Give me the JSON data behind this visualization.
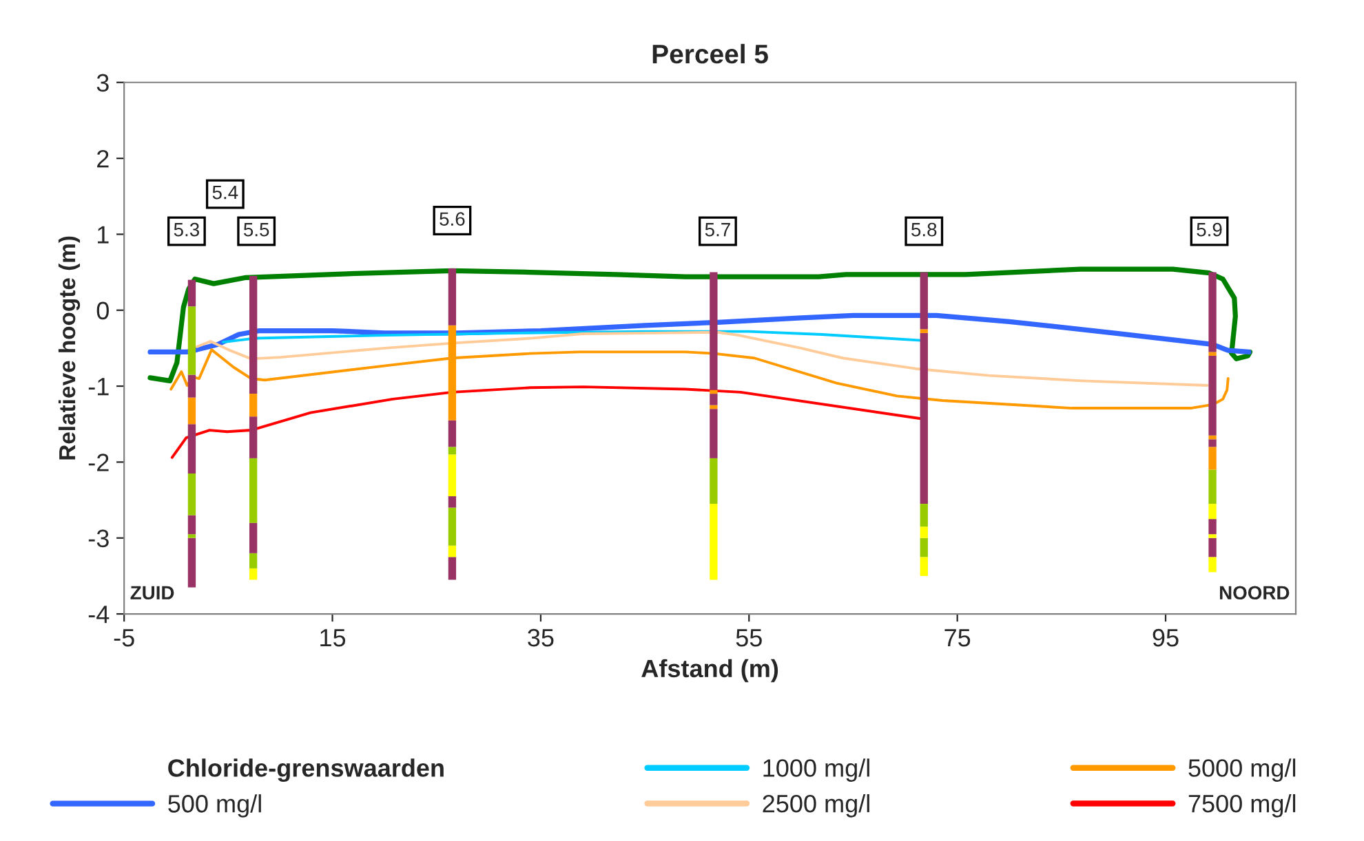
{
  "chart_data": {
    "type": "line",
    "title": "Perceel 5",
    "xlabel": "Afstand (m)",
    "ylabel": "Relatieve hoogte (m)",
    "legend_title": "Chloride-grenswaarden",
    "xlim": [
      -5,
      107.5
    ],
    "xticks": [
      -5,
      15,
      35,
      55,
      75,
      95
    ],
    "ylim": [
      -4,
      3
    ],
    "yticks": [
      -4,
      -3,
      -2,
      -1,
      0,
      1,
      2,
      3
    ],
    "grid": false,
    "legend": "bottom",
    "marker": "none",
    "line_style": "solid",
    "series": [
      {
        "color": "#008000",
        "x": [
          -2.5,
          -0.6,
          0.07,
          0.7,
          1.2,
          1.8,
          3.6,
          6.7,
          16.4,
          26.5,
          34,
          42.2,
          48.9,
          61.7,
          64.3,
          71.6,
          75.8,
          86.8,
          95.7,
          99.2,
          100.5,
          101.6,
          101.7,
          101.4,
          101.3,
          101.8,
          102.9,
          103.1
        ],
        "values": [
          -0.89,
          -0.93,
          -0.69,
          0.04,
          0.28,
          0.41,
          0.35,
          0.43,
          0.48,
          0.52,
          0.5,
          0.47,
          0.44,
          0.44,
          0.47,
          0.47,
          0.47,
          0.54,
          0.54,
          0.49,
          0.41,
          0.16,
          -0.08,
          -0.48,
          -0.56,
          -0.64,
          -0.6,
          -0.55
        ]
      },
      {
        "name": "500 mg/l",
        "color": "#3366ff",
        "x": [
          -2.5,
          1,
          2,
          4,
          6,
          8,
          15,
          20,
          27,
          35,
          45,
          52,
          60,
          65,
          73,
          80,
          90,
          99.5,
          101,
          103
        ],
        "values": [
          -0.55,
          -0.55,
          -0.52,
          -0.45,
          -0.32,
          -0.27,
          -0.27,
          -0.3,
          -0.3,
          -0.27,
          -0.2,
          -0.16,
          -0.1,
          -0.07,
          -0.07,
          -0.15,
          -0.3,
          -0.45,
          -0.53,
          -0.55
        ]
      },
      {
        "name": "1000 mg/l",
        "color": "#00ccff",
        "x": [
          4.5,
          7.5,
          20,
          33,
          45,
          55,
          62,
          67,
          71.8
        ],
        "values": [
          -0.42,
          -0.37,
          -0.33,
          -0.3,
          -0.28,
          -0.28,
          -0.32,
          -0.36,
          -0.4
        ]
      },
      {
        "name": "2500 mg/l",
        "color": "#ffcc99",
        "x": [
          2,
          3.3,
          5,
          7.2,
          10,
          20,
          27,
          34,
          39,
          46,
          52,
          54,
          60,
          64,
          71,
          78,
          87,
          99
        ],
        "values": [
          -0.48,
          -0.41,
          -0.52,
          -0.64,
          -0.62,
          -0.5,
          -0.43,
          -0.37,
          -0.31,
          -0.3,
          -0.29,
          -0.33,
          -0.5,
          -0.63,
          -0.77,
          -0.86,
          -0.93,
          -0.99
        ]
      },
      {
        "name": "5000 mg/l",
        "color": "#ff9900",
        "x": [
          -0.5,
          0.5,
          1.05,
          1.6,
          2.2,
          3.4,
          5.5,
          7.2,
          8.5,
          20.8,
          26.5,
          34,
          38.7,
          48.9,
          51.6,
          55.5,
          63.4,
          69.2,
          73.6,
          86,
          97.4,
          99.6,
          100.5,
          100.9,
          101
        ],
        "values": [
          -1.04,
          -0.81,
          -0.99,
          -0.88,
          -0.9,
          -0.52,
          -0.75,
          -0.9,
          -0.92,
          -0.72,
          -0.63,
          -0.57,
          -0.55,
          -0.55,
          -0.57,
          -0.63,
          -0.96,
          -1.13,
          -1.19,
          -1.29,
          -1.29,
          -1.24,
          -1.17,
          -1.05,
          -0.9
        ]
      },
      {
        "name": "7500 mg/l",
        "color": "#ff0000",
        "x": [
          -0.4,
          0.96,
          3.2,
          4.9,
          7.2,
          12.9,
          20.8,
          26.5,
          34,
          39.1,
          48.9,
          54.2,
          71.6
        ],
        "values": [
          -1.94,
          -1.68,
          -1.58,
          -1.6,
          -1.58,
          -1.35,
          -1.17,
          -1.08,
          -1.02,
          -1.01,
          -1.04,
          -1.08,
          -1.43
        ]
      },
      {
        "type": "bar",
        "x": [
          1.5,
          7.4,
          26.5,
          51.6,
          71.8,
          99.5
        ],
        "base": [
          -3.65,
          -3.55,
          -3.55,
          -3.55,
          -3.5,
          -3.45
        ],
        "values": [
          0.65,
          0.15,
          0.3,
          1.0,
          0.25,
          0.2
        ],
        "colors": [
          "#993366",
          "#ffff00",
          "#993366",
          "#ffff00",
          "#ffff00",
          "#ffff00"
        ]
      },
      {
        "type": "bar",
        "x": [
          1.5,
          7.4,
          26.5,
          51.6,
          71.8,
          99.5
        ],
        "base": [
          -3.0,
          -3.4,
          -3.25,
          -2.55,
          -3.25,
          -3.25
        ],
        "values": [
          0.05,
          0.2,
          0.15,
          0.6,
          0.25,
          0.25
        ],
        "colors": [
          "#99cc00",
          "#99cc00",
          "#ffff00",
          "#99cc00",
          "#99cc00",
          "#993366"
        ]
      },
      {
        "type": "bar",
        "x": [
          1.5,
          7.4,
          26.5,
          51.6,
          71.8,
          99.5
        ],
        "base": [
          -2.95,
          -3.2,
          -3.1,
          -1.95,
          -3.0,
          -3.0
        ],
        "values": [
          0.25,
          0.4,
          0.5,
          0.65,
          0.15,
          0.05
        ],
        "colors": [
          "#993366",
          "#993366",
          "#99cc00",
          "#993366",
          "#ffff00",
          "#ffff00"
        ]
      },
      {
        "type": "bar",
        "x": [
          1.5,
          7.4,
          26.5,
          51.6,
          71.8,
          99.5
        ],
        "base": [
          -2.7,
          -2.8,
          -2.6,
          -1.3,
          -2.85,
          -2.95
        ],
        "values": [
          0.55,
          0.85,
          0.15,
          0.05,
          0.3,
          0.2
        ],
        "colors": [
          "#99cc00",
          "#99cc00",
          "#993366",
          "#ff9900",
          "#99cc00",
          "#993366"
        ]
      },
      {
        "type": "bar",
        "x": [
          1.5,
          7.4,
          26.5,
          51.6,
          71.8,
          99.5
        ],
        "base": [
          -2.15,
          -1.95,
          -2.45,
          -1.25,
          -2.55,
          -2.75
        ],
        "values": [
          0.65,
          0.55,
          0.55,
          0.15,
          2.25,
          0.2
        ],
        "colors": [
          "#993366",
          "#993366",
          "#ffff00",
          "#993366",
          "#993366",
          "#ffff00"
        ]
      },
      {
        "type": "bar",
        "x": [
          1.5,
          7.4,
          26.5,
          51.6,
          71.8,
          99.5
        ],
        "base": [
          -1.5,
          -1.4,
          -1.9,
          -1.1,
          -0.3,
          -2.55
        ],
        "values": [
          0.35,
          0.3,
          0.1,
          0.05,
          0.05,
          0.45
        ],
        "colors": [
          "#ff9900",
          "#ff9900",
          "#99cc00",
          "#ff9900",
          "#ff9900",
          "#99cc00"
        ]
      },
      {
        "type": "bar",
        "x": [
          1.5,
          7.4,
          26.5,
          51.6,
          71.8,
          99.5
        ],
        "base": [
          -1.15,
          -1.1,
          -1.8,
          -1.05,
          -0.25,
          -2.1
        ],
        "values": [
          0.3,
          1.55,
          0.35,
          1.55,
          0.75,
          0.3
        ],
        "colors": [
          "#993366",
          "#993366",
          "#993366",
          "#993366",
          "#993366",
          "#ff9900"
        ]
      },
      {
        "type": "bar",
        "x": [
          1.5,
          26.5,
          99.5
        ],
        "base": [
          -0.85,
          -1.45,
          -1.8
        ],
        "values": [
          0.9,
          1.25,
          0.1
        ],
        "colors": [
          "#99cc00",
          "#ff9900",
          "#993366"
        ]
      },
      {
        "type": "bar",
        "x": [
          1.5,
          26.5,
          99.5
        ],
        "base": [
          0.05,
          -0.2,
          -1.7
        ],
        "values": [
          0.35,
          0.75,
          0.05
        ],
        "colors": [
          "#993366",
          "#993366",
          "#ff9900"
        ]
      },
      {
        "type": "bar",
        "x": [
          99.5
        ],
        "base": [
          -1.65
        ],
        "values": [
          1.05
        ],
        "colors": [
          "#993366"
        ]
      },
      {
        "type": "bar",
        "x": [
          99.5
        ],
        "base": [
          -0.6
        ],
        "values": [
          0.05
        ],
        "colors": [
          "#ff9900"
        ]
      },
      {
        "type": "bar",
        "x": [
          99.5
        ],
        "base": [
          -0.55
        ],
        "values": [
          1.05
        ],
        "colors": [
          "#993366"
        ]
      }
    ],
    "annotations": [
      {
        "text": "5.3",
        "x": 1,
        "y": 1.04
      },
      {
        "text": "5.4",
        "x": 4.7,
        "y": 1.53
      },
      {
        "text": "5.5",
        "x": 7.7,
        "y": 1.04
      },
      {
        "text": "5.6",
        "x": 26.5,
        "y": 1.18
      },
      {
        "text": "5.7",
        "x": 52,
        "y": 1.04
      },
      {
        "text": "5.8",
        "x": 71.8,
        "y": 1.04
      },
      {
        "text": "5.9",
        "x": 99.2,
        "y": 1.04
      },
      "ZUID",
      "NOORD"
    ]
  }
}
